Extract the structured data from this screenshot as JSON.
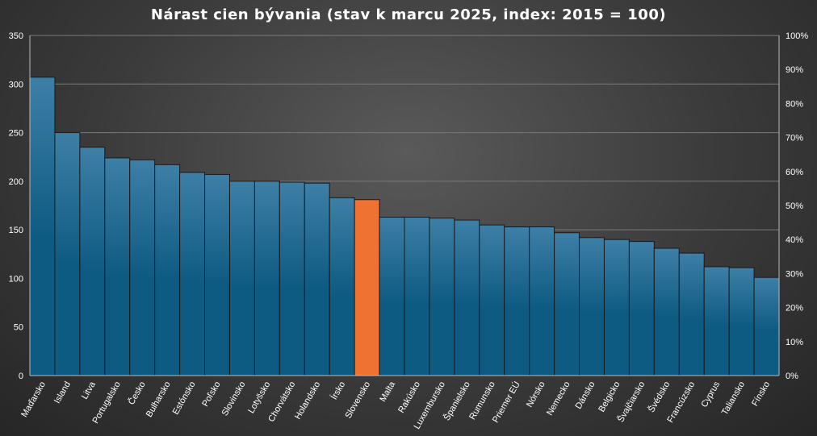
{
  "chart_data": {
    "type": "bar",
    "title": "Nárast cien bývania (stav k marcu 2025, index: 2015 = 100)",
    "categories": [
      "Maďarsko",
      "Island",
      "Litva",
      "Portugalsko",
      "Česko",
      "Bulharsko",
      "Estónsko",
      "Poľsko",
      "Slovinsko",
      "Lotyšsko",
      "Chorvátsko",
      "Holandsko",
      "Írsko",
      "Slovensko",
      "Malta",
      "Rakúsko",
      "Luxembursko",
      "Španielsko",
      "Rumunsko",
      "Priemer EÚ",
      "Nórsko",
      "Nemecko",
      "Dánsko",
      "Belgicko",
      "Švajčiarsko",
      "Švédsko",
      "Francúzsko",
      "Cyprus",
      "Taliansko",
      "Fínsko"
    ],
    "values": [
      307,
      250,
      235,
      224,
      222,
      217,
      209,
      207,
      200,
      200,
      199,
      198,
      183,
      181,
      163,
      163,
      162,
      160,
      155,
      153,
      153,
      147,
      142,
      140,
      138,
      131,
      126,
      112,
      111,
      101
    ],
    "highlight_category": "Slovensko",
    "ylim": [
      0,
      350
    ],
    "yticks": [
      0,
      50,
      100,
      150,
      200,
      250,
      300,
      350
    ],
    "y2ticks": [
      "0%",
      "10%",
      "20%",
      "30%",
      "40%",
      "50%",
      "60%",
      "70%",
      "80%",
      "90%",
      "100%"
    ],
    "grid": true,
    "colors": {
      "bar_top": "#3e7fa6",
      "bar_bottom": "#0d5a82",
      "highlight": "#f07232",
      "bar_edge": "#1a1a1a",
      "grid": "#7a7a7a"
    }
  }
}
